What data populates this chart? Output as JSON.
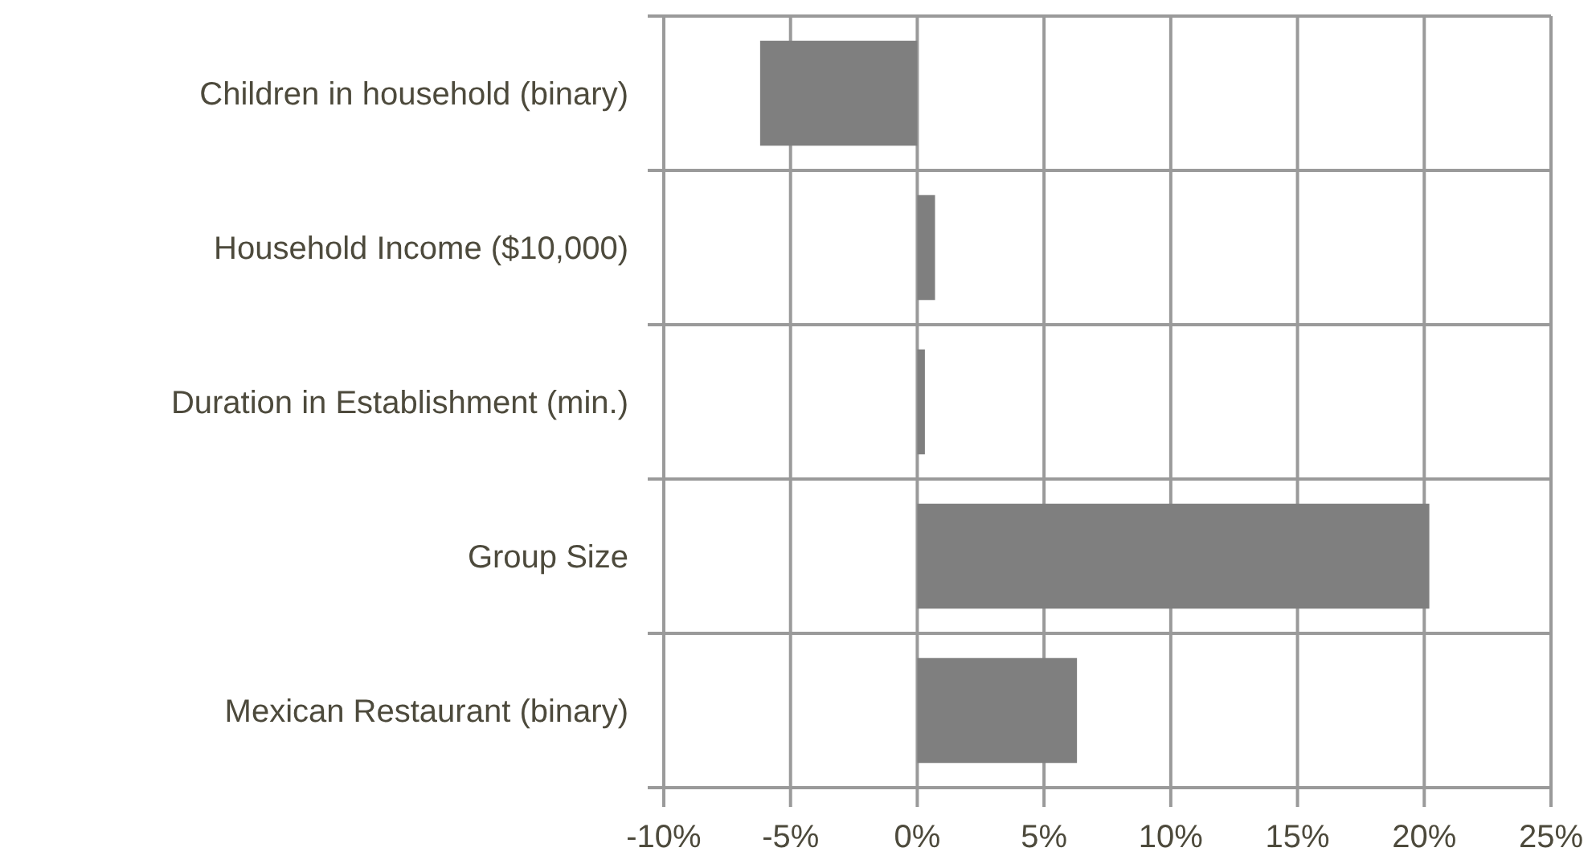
{
  "chart_data": {
    "type": "bar",
    "orientation": "horizontal",
    "categories": [
      "Children in household (binary)",
      "Household Income ($10,000)",
      "Duration in Establishment (min.)",
      "Group Size",
      "Mexican Restaurant (binary)"
    ],
    "values": [
      -6.2,
      0.7,
      0.3,
      20.2,
      6.3
    ],
    "color": "#7f7f7f",
    "xlim": [
      -10,
      25
    ],
    "xticks": [
      {
        "value": -10,
        "label": "-10%"
      },
      {
        "value": -5,
        "label": "-5%"
      },
      {
        "value": 0,
        "label": "0%"
      },
      {
        "value": 5,
        "label": "5%"
      },
      {
        "value": 10,
        "label": "10%"
      },
      {
        "value": 15,
        "label": "15%"
      },
      {
        "value": 20,
        "label": "20%"
      },
      {
        "value": 25,
        "label": "25%"
      }
    ],
    "grid": true
  }
}
